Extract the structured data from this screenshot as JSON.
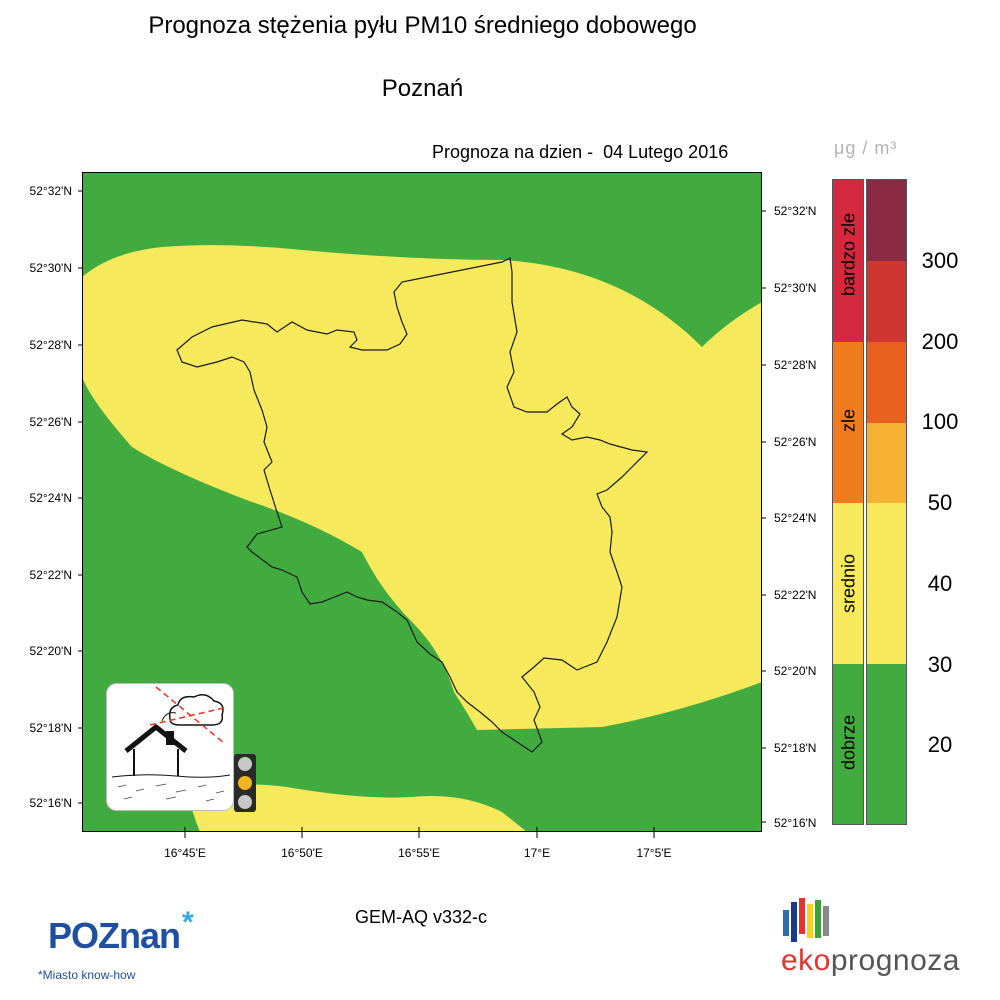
{
  "header": {
    "title": "Prognoza stężenia pyłu PM10 średniego dobowego",
    "city": "Poznań",
    "forecast_label": "Prognoza na dzien -  04 Lutego 2016",
    "units": "μg / m³"
  },
  "map": {
    "lat_labels": [
      "52°32'N",
      "52°30'N",
      "52°28'N",
      "52°26'N",
      "52°24'N",
      "52°22'N",
      "52°20'N",
      "52°18'N",
      "52°16'N"
    ],
    "lat_labels_right": [
      "52°32'N",
      "52°30'N",
      "52°28'N",
      "52°26'N",
      "52°24'N",
      "52°22'N",
      "52°20'N",
      "52°18'N",
      "52°16'N"
    ],
    "lon_labels": [
      "16°45'E",
      "16°50'E",
      "16°55'E",
      "17°E",
      "17°5'E"
    ],
    "colors": {
      "green": "#42ab3f",
      "yellow": "#f6e95c",
      "border": "#1a1a1a"
    }
  },
  "legend": {
    "categories": [
      {
        "label": "bardzo zle",
        "color": "#d3283d"
      },
      {
        "label": "zle",
        "color": "#ef7d20"
      },
      {
        "label": "srednio",
        "color": "#f6e95c"
      },
      {
        "label": "dobrze",
        "color": "#42ab3f"
      }
    ],
    "scale_colors": [
      "#8a2a44",
      "#cf3630",
      "#e9611f",
      "#f7b233",
      "#f6e95c",
      "#f6e95c",
      "#42ab3f",
      "#42ab3f"
    ],
    "scale_values": [
      "300",
      "200",
      "100",
      "50",
      "40",
      "30",
      "20"
    ]
  },
  "footer": {
    "model": "GEM-AQ v332-c",
    "poznan_logo": "POZnan",
    "poznan_star": "*",
    "poznan_tagline": "*Miasto know-how",
    "eko_part1": "eko",
    "eko_part2": "prognoza"
  },
  "icons": {
    "pollution_icon": "smog-house-icon",
    "traffic_light": "traffic-light-icon"
  }
}
